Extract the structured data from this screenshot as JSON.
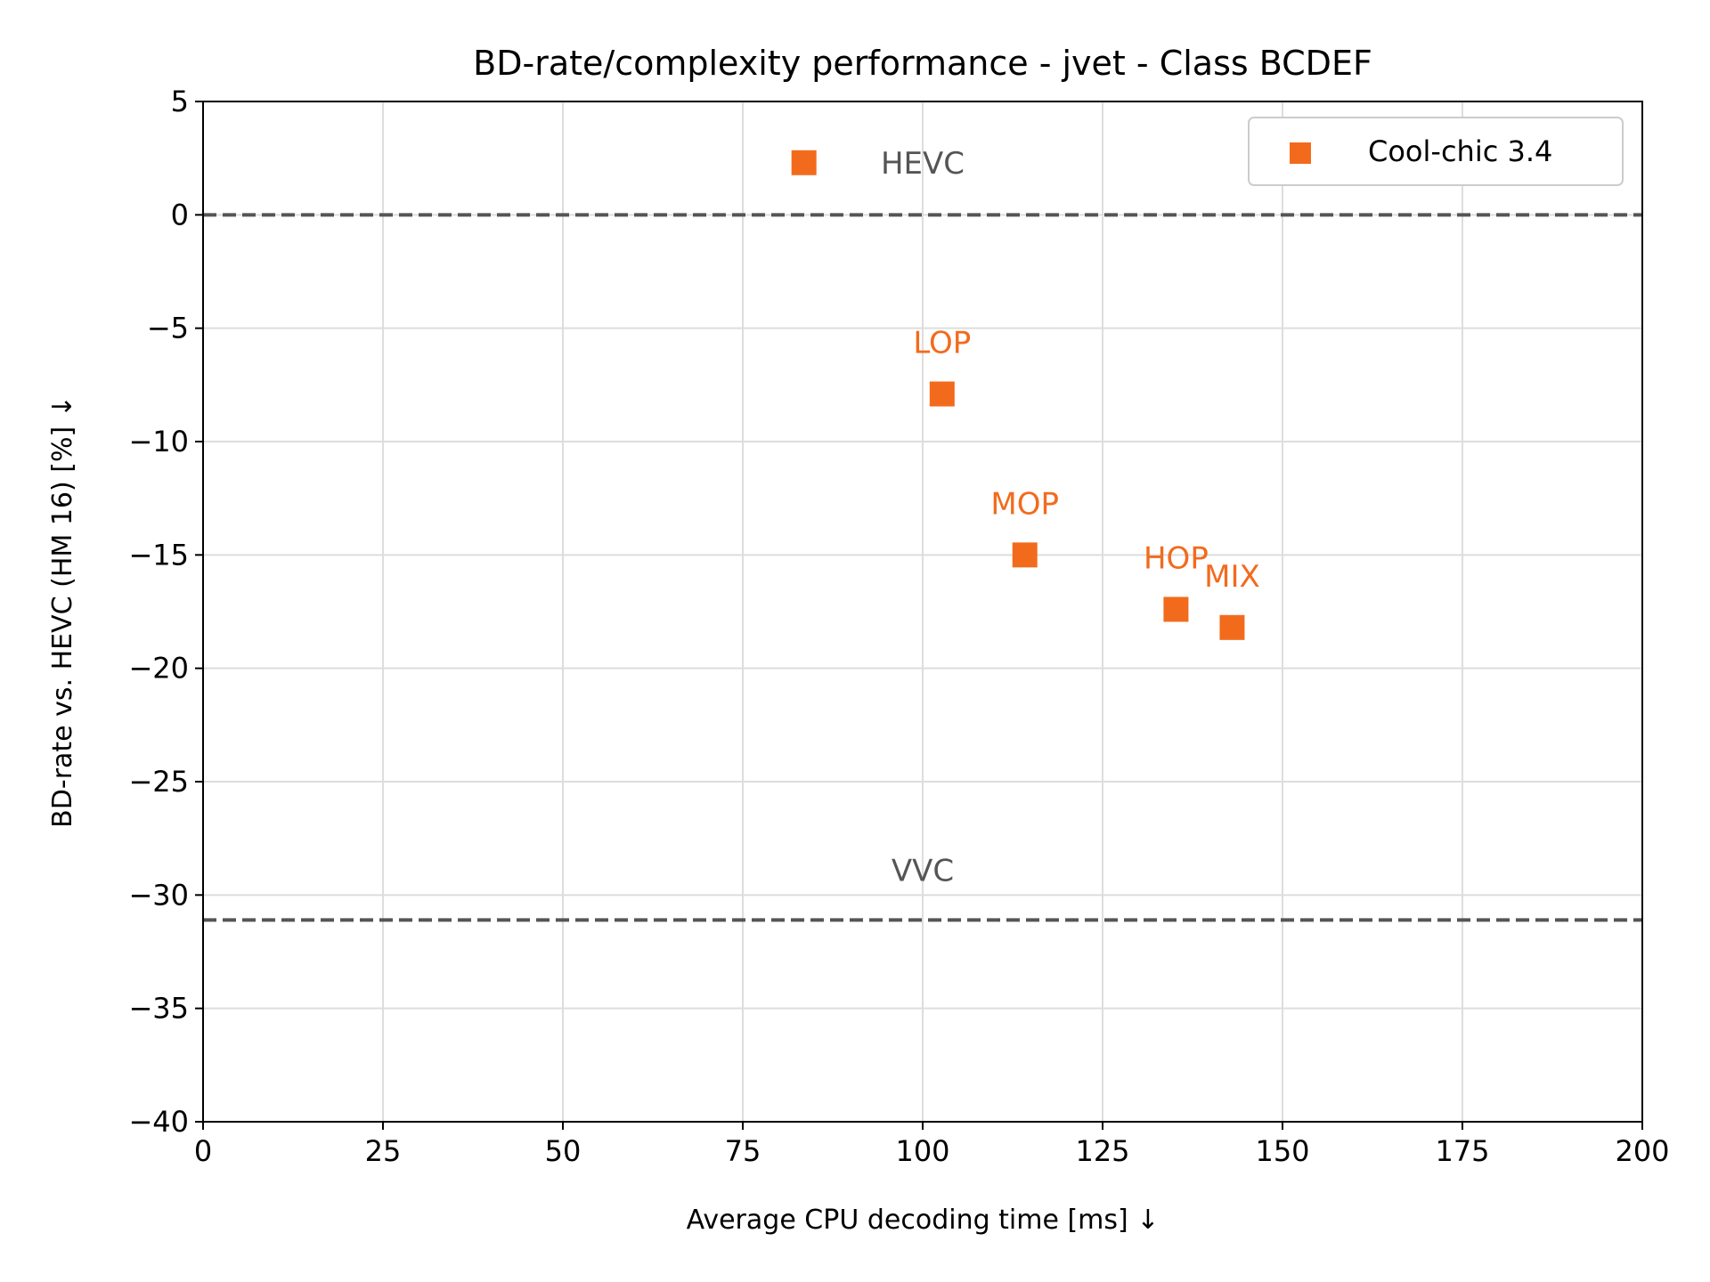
{
  "chart_data": {
    "type": "scatter",
    "title": "BD-rate/complexity performance - jvet - Class BCDEF",
    "xlabel": "Average CPU decoding time [ms]  ↓",
    "ylabel": "BD-rate vs. HEVC (HM 16) [%]  ↓",
    "xlim": [
      0,
      200
    ],
    "ylim": [
      -40,
      5
    ],
    "xticks": [
      0,
      25,
      50,
      75,
      100,
      125,
      150,
      175,
      200
    ],
    "xtick_labels": [
      "0",
      "25",
      "50",
      "75",
      "100",
      "125",
      "150",
      "175",
      "200"
    ],
    "yticks": [
      5,
      0,
      -5,
      -10,
      -15,
      -20,
      -25,
      -30,
      -35,
      -40
    ],
    "ytick_labels": [
      "5",
      "0",
      "−5",
      "−10",
      "−15",
      "−20",
      "−25",
      "−30",
      "−35",
      "−40"
    ],
    "grid": true,
    "legend_position": "top-right",
    "series": [
      {
        "name": "Cool-chic 3.4",
        "color": "#f26b1d",
        "marker": "square",
        "points": [
          {
            "label": "LOP",
            "x": 102.7,
            "y": -7.9
          },
          {
            "label": "MOP",
            "x": 114.2,
            "y": -15.0
          },
          {
            "label": "HOP",
            "x": 135.2,
            "y": -17.4
          },
          {
            "label": "MIX",
            "x": 143.0,
            "y": -18.2
          }
        ]
      }
    ],
    "reference_lines": [
      {
        "label": "HEVC",
        "y": 0,
        "color": "#555555",
        "style": "dashed"
      },
      {
        "label": "VVC",
        "y": -31.1,
        "color": "#555555",
        "style": "dashed"
      }
    ]
  }
}
